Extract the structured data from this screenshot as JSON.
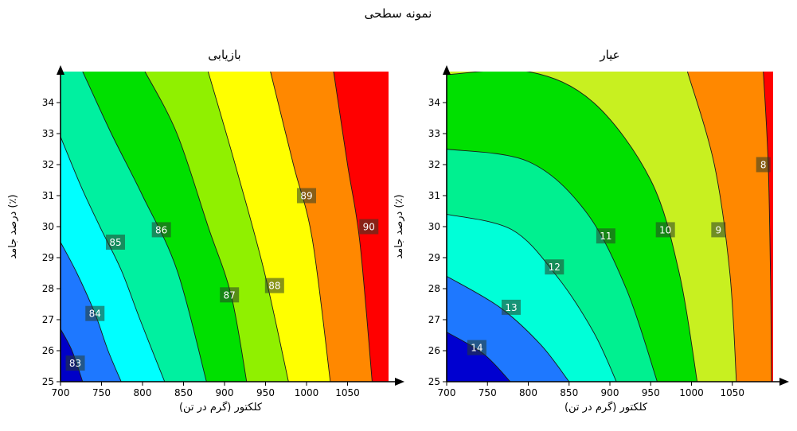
{
  "figure": {
    "title": "نمونه سطحی"
  },
  "chart_data": [
    {
      "type": "contour",
      "title": "بازیابی",
      "xlabel": "کلکتور (گرم در تن)",
      "ylabel": "درصد جامد (٪)",
      "xlim": [
        700,
        1100
      ],
      "ylim": [
        25,
        35
      ],
      "xticks": [
        700,
        750,
        800,
        850,
        900,
        950,
        1000,
        1050
      ],
      "yticks": [
        25,
        26,
        27,
        28,
        29,
        30,
        31,
        32,
        33,
        34
      ],
      "levels": [
        83,
        84,
        85,
        86,
        87,
        88,
        89,
        90
      ],
      "band_colors": [
        "#0000c8",
        "#1e78ff",
        "#00ffff",
        "#00f0a0",
        "#00e000",
        "#90f000",
        "#ffff00",
        "#ff8800",
        "#ff0000"
      ],
      "contour_lines": [
        {
          "level": 83,
          "points": [
            [
              700,
              26.7
            ],
            [
              714,
              26.0
            ],
            [
              727,
              25.0
            ]
          ]
        },
        {
          "level": 84,
          "points": [
            [
              700,
              29.5
            ],
            [
              720,
              28.5
            ],
            [
              742,
              27.2
            ],
            [
              758,
              26.0
            ],
            [
              774,
              25.0
            ]
          ]
        },
        {
          "level": 85,
          "points": [
            [
              700,
              32.9
            ],
            [
              725,
              31.3
            ],
            [
              748,
              30.0
            ],
            [
              774,
              28.6
            ],
            [
              797,
              27.0
            ],
            [
              827,
              25.0
            ]
          ]
        },
        {
          "level": 86,
          "points": [
            [
              727,
              35.0
            ],
            [
              762,
              33.0
            ],
            [
              800,
              31.0
            ],
            [
              842,
              28.6
            ],
            [
              878,
              25.0
            ]
          ]
        },
        {
          "level": 87,
          "points": [
            [
              803,
              35.0
            ],
            [
              842,
              33.0
            ],
            [
              880,
              30.0
            ],
            [
              908,
              27.8
            ],
            [
              927,
              25.0
            ]
          ]
        },
        {
          "level": 88,
          "points": [
            [
              880,
              35.0
            ],
            [
              913,
              32.0
            ],
            [
              948,
              28.6
            ],
            [
              978,
              25.0
            ]
          ]
        },
        {
          "level": 89,
          "points": [
            [
              956,
              35.0
            ],
            [
              984,
              32.0
            ],
            [
              1007,
              29.6
            ],
            [
              1029,
              25.0
            ]
          ]
        },
        {
          "level": 90,
          "points": [
            [
              1033,
              35.0
            ],
            [
              1050,
              32.0
            ],
            [
              1065,
              29.5
            ],
            [
              1080,
              25.0
            ]
          ]
        }
      ],
      "contour_labels": [
        {
          "text": "83",
          "x": 718,
          "y": 25.6
        },
        {
          "text": "84",
          "x": 742,
          "y": 27.2
        },
        {
          "text": "85",
          "x": 767,
          "y": 29.5
        },
        {
          "text": "86",
          "x": 823,
          "y": 29.9
        },
        {
          "text": "87",
          "x": 906,
          "y": 27.8
        },
        {
          "text": "88",
          "x": 961,
          "y": 28.1
        },
        {
          "text": "89",
          "x": 1000,
          "y": 31.0
        },
        {
          "text": "90",
          "x": 1076,
          "y": 30.0
        }
      ]
    },
    {
      "type": "contour",
      "title": "عیار",
      "xlabel": "کلکتور (گرم در تن)",
      "ylabel": "درصد جامد (٪)",
      "xlim": [
        700,
        1100
      ],
      "ylim": [
        25,
        35
      ],
      "xticks": [
        700,
        750,
        800,
        850,
        900,
        950,
        1000,
        1050
      ],
      "yticks": [
        25,
        26,
        27,
        28,
        29,
        30,
        31,
        32,
        33,
        34
      ],
      "levels": [
        8,
        9,
        10,
        11,
        12,
        13,
        14
      ],
      "band_colors": [
        "#0000d0",
        "#1e78ff",
        "#00ffd8",
        "#00f090",
        "#00e000",
        "#c8f020",
        "#ff8800",
        "#ff0000"
      ],
      "contour_lines": [
        {
          "level": 14,
          "points": [
            [
              700,
              26.6
            ],
            [
              745,
              25.9
            ],
            [
              778,
              25.0
            ]
          ]
        },
        {
          "level": 13,
          "points": [
            [
              700,
              28.4
            ],
            [
              765,
              27.4
            ],
            [
              815,
              26.2
            ],
            [
              850,
              25.0
            ]
          ]
        },
        {
          "level": 12,
          "points": [
            [
              700,
              30.4
            ],
            [
              780,
              29.9
            ],
            [
              835,
              28.4
            ],
            [
              880,
              26.6
            ],
            [
              908,
              25.0
            ]
          ]
        },
        {
          "level": 11,
          "points": [
            [
              700,
              32.5
            ],
            [
              800,
              32.1
            ],
            [
              870,
              30.5
            ],
            [
              920,
              28.0
            ],
            [
              958,
              25.0
            ]
          ]
        },
        {
          "level": 10,
          "points": [
            [
              700,
              34.9
            ],
            [
              800,
              35.0
            ],
            [
              880,
              34.0
            ],
            [
              950,
              31.5
            ],
            [
              985,
              28.5
            ],
            [
              1007,
              25.0
            ]
          ]
        },
        {
          "level": 9,
          "points": [
            [
              995,
              35.0
            ],
            [
              1028,
              32.0
            ],
            [
              1047,
              28.5
            ],
            [
              1055,
              25.0
            ]
          ]
        },
        {
          "level": 8,
          "points": [
            [
              1088,
              35.0
            ],
            [
              1094,
              32.0
            ],
            [
              1097,
              28.0
            ],
            [
              1098,
              25.0
            ]
          ]
        }
      ],
      "contour_labels": [
        {
          "text": "14",
          "x": 737,
          "y": 26.1
        },
        {
          "text": "13",
          "x": 779,
          "y": 27.4
        },
        {
          "text": "12",
          "x": 832,
          "y": 28.7
        },
        {
          "text": "11",
          "x": 895,
          "y": 29.7
        },
        {
          "text": "10",
          "x": 968,
          "y": 29.9
        },
        {
          "text": "9",
          "x": 1033,
          "y": 29.9
        },
        {
          "text": "8",
          "x": 1088,
          "y": 32.0
        }
      ]
    }
  ]
}
